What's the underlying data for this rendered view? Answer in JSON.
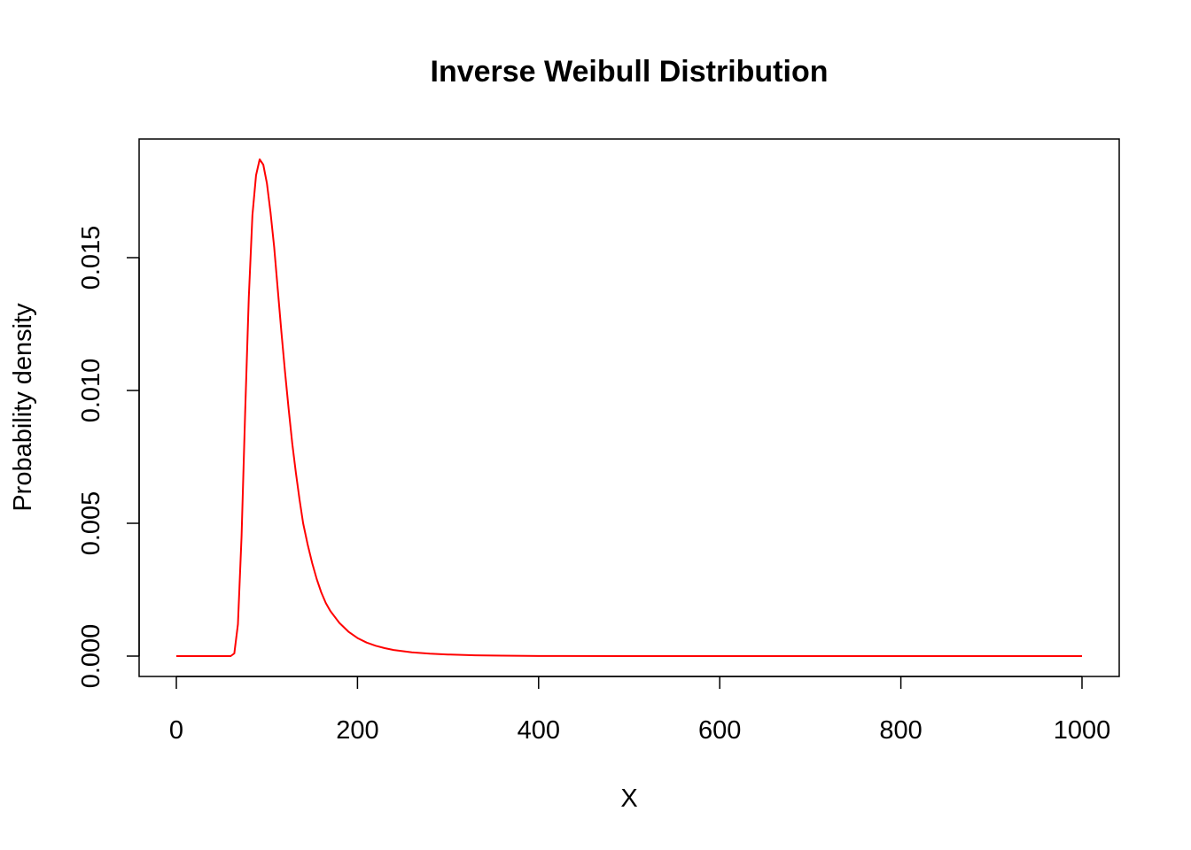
{
  "chart_data": {
    "type": "line",
    "title": "Inverse Weibull Distribution",
    "xlabel": "X",
    "ylabel": "Probability density",
    "xlim": [
      0,
      1000
    ],
    "ylim": [
      0,
      0.0187
    ],
    "x_ticks": [
      "0",
      "200",
      "400",
      "600",
      "800",
      "1000"
    ],
    "y_ticks": [
      "0.000",
      "0.005",
      "0.010",
      "0.015"
    ],
    "grid": false,
    "legend": "none",
    "series": [
      {
        "color": "#ff0000",
        "x": [
          0,
          30,
          60,
          64,
          68,
          72,
          76,
          80,
          84,
          88,
          92,
          96,
          100,
          104,
          108,
          112,
          116,
          120,
          124,
          128,
          132,
          136,
          140,
          145,
          150,
          155,
          160,
          165,
          170,
          180,
          190,
          200,
          210,
          220,
          230,
          240,
          260,
          280,
          300,
          330,
          360,
          400,
          500,
          600,
          700,
          800,
          900,
          1000
        ],
        "y": [
          0,
          0,
          0,
          0.0001,
          0.0012,
          0.0045,
          0.0092,
          0.0135,
          0.0166,
          0.0181,
          0.0187,
          0.0185,
          0.0178,
          0.0167,
          0.0154,
          0.0138,
          0.0122,
          0.0107,
          0.0093,
          0.008,
          0.0069,
          0.0059,
          0.005,
          0.0042,
          0.0035,
          0.0029,
          0.0024,
          0.002,
          0.0017,
          0.00125,
          0.00092,
          0.00068,
          0.00051,
          0.00039,
          0.0003,
          0.00023,
          0.00014,
          9e-05,
          6e-05,
          3e-05,
          1.5e-05,
          5e-06,
          0,
          0,
          0,
          0,
          0,
          0
        ]
      }
    ]
  }
}
